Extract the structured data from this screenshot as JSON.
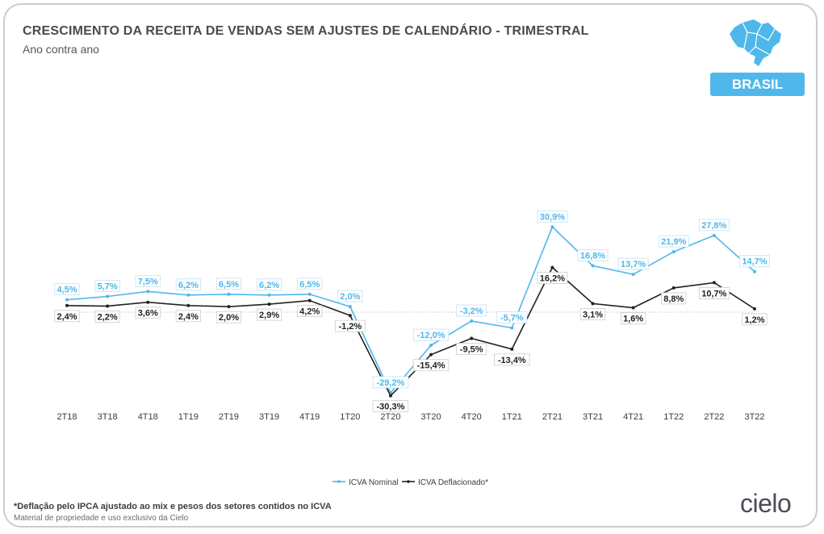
{
  "header": {
    "title": "CRESCIMENTO DA RECEITA DE VENDAS SEM AJUSTES DE CALENDÁRIO - TRIMESTRAL",
    "subtitle": "Ano contra ano"
  },
  "region": {
    "label": "BRASIL",
    "map_icon": "brazil-map-icon",
    "color": "#4fb7ea"
  },
  "colors": {
    "nominal": "#4fb7ea",
    "deflated": "#222222",
    "zero_line": "#cccccc"
  },
  "chart_data": {
    "type": "line",
    "title": "CRESCIMENTO DA RECEITA DE VENDAS SEM AJUSTES DE CALENDÁRIO - TRIMESTRAL",
    "subtitle": "Ano contra ano",
    "categories": [
      "2T18",
      "3T18",
      "4T18",
      "1T19",
      "2T19",
      "3T19",
      "4T19",
      "1T20",
      "2T20",
      "3T20",
      "4T20",
      "1T21",
      "2T21",
      "3T21",
      "4T21",
      "1T22",
      "2T22",
      "3T22"
    ],
    "series": [
      {
        "name": "ICVA Nominal",
        "values": [
          4.5,
          5.7,
          7.5,
          6.2,
          6.5,
          6.2,
          6.5,
          2.0,
          -29.2,
          -12.0,
          -3.2,
          -5.7,
          30.9,
          16.8,
          13.7,
          21.9,
          27.8,
          14.7
        ],
        "labels": [
          "4,5%",
          "5,7%",
          "7,5%",
          "6,2%",
          "6,5%",
          "6,2%",
          "6,5%",
          "2,0%",
          "-29,2%",
          "-12,0%",
          "-3,2%",
          "-5,7%",
          "30,9%",
          "16,8%",
          "13,7%",
          "21,9%",
          "27,8%",
          "14,7%"
        ]
      },
      {
        "name": "ICVA Deflacionado*",
        "values": [
          2.4,
          2.2,
          3.6,
          2.4,
          2.0,
          2.9,
          4.2,
          -1.2,
          -30.3,
          -15.4,
          -9.5,
          -13.4,
          16.2,
          3.1,
          1.6,
          8.8,
          10.7,
          1.2
        ],
        "labels": [
          "2,4%",
          "2,2%",
          "3,6%",
          "2,4%",
          "2,0%",
          "2,9%",
          "4,2%",
          "-1,2%",
          "-30,3%",
          "-15,4%",
          "-9,5%",
          "-13,4%",
          "16,2%",
          "3,1%",
          "1,6%",
          "8,8%",
          "10,7%",
          "1,2%"
        ]
      }
    ],
    "legend_position": "bottom-center",
    "grid": false,
    "zero_line": true,
    "ylim": [
      -32,
      33
    ]
  },
  "footer": {
    "footnote": "*Deflação pelo IPCA ajustado ao mix e pesos dos setores contidos no ICVA",
    "rights": "Material de propriedade e uso exclusivo da Cielo",
    "logo_text": "cielo"
  }
}
